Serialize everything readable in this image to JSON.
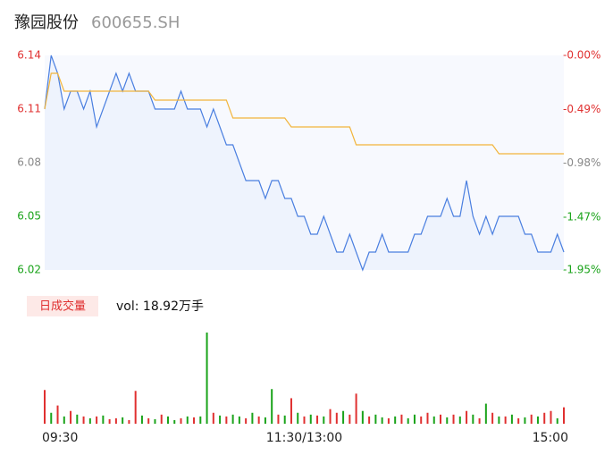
{
  "chart_data": {
    "type": "intraday",
    "title": "豫园股份",
    "subtitle": "600655.SH",
    "volume_label": "日成交量",
    "volume_text": "vol: 18.92万手",
    "xlim": [
      0,
      240
    ],
    "xticks": [
      {
        "value": 0,
        "label": "09:30"
      },
      {
        "value": 120,
        "label": "11:30/13:00"
      },
      {
        "value": 240,
        "label": "15:00"
      }
    ],
    "ylim": [
      6.02,
      6.14
    ],
    "yticks": [
      6.02,
      6.05,
      6.08,
      6.11,
      6.14
    ],
    "ytick_colors": [
      "#1aa31a",
      "#1aa31a",
      "#888888",
      "#e03030",
      "#e03030"
    ],
    "y2lim": [
      -1.95,
      0
    ],
    "y2ticks": [
      {
        "value": -1.95,
        "label": "-1.95%"
      },
      {
        "value": -1.47,
        "label": "-1.47%"
      },
      {
        "value": -0.98,
        "label": "-0.98%"
      },
      {
        "value": -0.49,
        "label": "-0.49%"
      },
      {
        "value": 0,
        "label": "-0.00%"
      }
    ],
    "x": [
      0,
      3,
      6,
      9,
      12,
      15,
      18,
      21,
      24,
      27,
      30,
      33,
      36,
      39,
      42,
      45,
      48,
      51,
      54,
      57,
      60,
      63,
      66,
      69,
      72,
      75,
      78,
      81,
      84,
      87,
      90,
      93,
      96,
      99,
      102,
      105,
      108,
      111,
      114,
      117,
      120,
      123,
      126,
      129,
      132,
      135,
      138,
      141,
      144,
      147,
      150,
      153,
      156,
      159,
      162,
      165,
      168,
      171,
      174,
      177,
      180,
      183,
      186,
      189,
      192,
      195,
      198,
      201,
      204,
      207,
      210,
      213,
      216,
      219,
      222,
      225,
      228,
      231,
      234,
      237,
      240
    ],
    "series": [
      {
        "name": "price",
        "color": "#4a7fe0",
        "values": [
          6.11,
          6.14,
          6.13,
          6.11,
          6.12,
          6.12,
          6.11,
          6.12,
          6.1,
          6.11,
          6.12,
          6.13,
          6.12,
          6.13,
          6.12,
          6.12,
          6.12,
          6.11,
          6.11,
          6.11,
          6.11,
          6.12,
          6.11,
          6.11,
          6.11,
          6.1,
          6.11,
          6.1,
          6.09,
          6.09,
          6.08,
          6.07,
          6.07,
          6.07,
          6.06,
          6.07,
          6.07,
          6.06,
          6.06,
          6.05,
          6.05,
          6.04,
          6.04,
          6.05,
          6.04,
          6.03,
          6.03,
          6.04,
          6.03,
          6.02,
          6.03,
          6.03,
          6.04,
          6.03,
          6.03,
          6.03,
          6.03,
          6.04,
          6.04,
          6.05,
          6.05,
          6.05,
          6.06,
          6.05,
          6.05,
          6.07,
          6.05,
          6.04,
          6.05,
          6.04,
          6.05,
          6.05,
          6.05,
          6.05,
          6.04,
          6.04,
          6.03,
          6.03,
          6.03,
          6.04,
          6.03
        ]
      },
      {
        "name": "average",
        "color": "#f2b53c",
        "values": [
          6.11,
          6.13,
          6.13,
          6.12,
          6.12,
          6.12,
          6.12,
          6.12,
          6.12,
          6.12,
          6.12,
          6.12,
          6.12,
          6.12,
          6.12,
          6.12,
          6.12,
          6.115,
          6.115,
          6.115,
          6.115,
          6.115,
          6.115,
          6.115,
          6.115,
          6.115,
          6.115,
          6.115,
          6.115,
          6.105,
          6.105,
          6.105,
          6.105,
          6.105,
          6.105,
          6.105,
          6.105,
          6.105,
          6.1,
          6.1,
          6.1,
          6.1,
          6.1,
          6.1,
          6.1,
          6.1,
          6.1,
          6.1,
          6.09,
          6.09,
          6.09,
          6.09,
          6.09,
          6.09,
          6.09,
          6.09,
          6.09,
          6.09,
          6.09,
          6.09,
          6.09,
          6.09,
          6.09,
          6.09,
          6.09,
          6.09,
          6.09,
          6.09,
          6.09,
          6.09,
          6.085,
          6.085,
          6.085,
          6.085,
          6.085,
          6.085,
          6.085,
          6.085,
          6.085,
          6.085,
          6.085
        ]
      }
    ],
    "volume": {
      "ylim": [
        0,
        100
      ],
      "up_color": "#e03030",
      "down_color": "#1aa31a",
      "values": [
        37,
        12,
        20,
        8,
        14,
        10,
        8,
        6,
        8,
        9,
        5,
        6,
        7,
        4,
        36,
        9,
        6,
        5,
        10,
        8,
        4,
        6,
        8,
        7,
        8,
        100,
        12,
        9,
        8,
        10,
        8,
        6,
        12,
        8,
        7,
        38,
        10,
        9,
        28,
        12,
        8,
        10,
        9,
        8,
        16,
        12,
        14,
        10,
        33,
        14,
        8,
        10,
        7,
        6,
        8,
        10,
        6,
        10,
        8,
        12,
        8,
        10,
        7,
        10,
        8,
        14,
        10,
        6,
        22,
        12,
        8,
        8,
        10,
        6,
        7,
        10,
        8,
        12,
        14,
        6,
        18
      ],
      "directions": [
        "up",
        "down",
        "up",
        "down",
        "up",
        "down",
        "up",
        "down",
        "up",
        "down",
        "up",
        "up",
        "down",
        "up",
        "up",
        "down",
        "up",
        "down",
        "up",
        "down",
        "down",
        "up",
        "down",
        "up",
        "down",
        "down",
        "up",
        "down",
        "up",
        "down",
        "down",
        "up",
        "down",
        "up",
        "down",
        "down",
        "up",
        "down",
        "up",
        "down",
        "up",
        "down",
        "up",
        "down",
        "up",
        "up",
        "down",
        "up",
        "up",
        "down",
        "up",
        "down",
        "down",
        "up",
        "down",
        "up",
        "down",
        "down",
        "up",
        "up",
        "down",
        "up",
        "down",
        "up",
        "down",
        "up",
        "down",
        "up",
        "down",
        "up",
        "down",
        "up",
        "down",
        "up",
        "down",
        "up",
        "down",
        "up",
        "up",
        "down",
        "up"
      ]
    }
  }
}
